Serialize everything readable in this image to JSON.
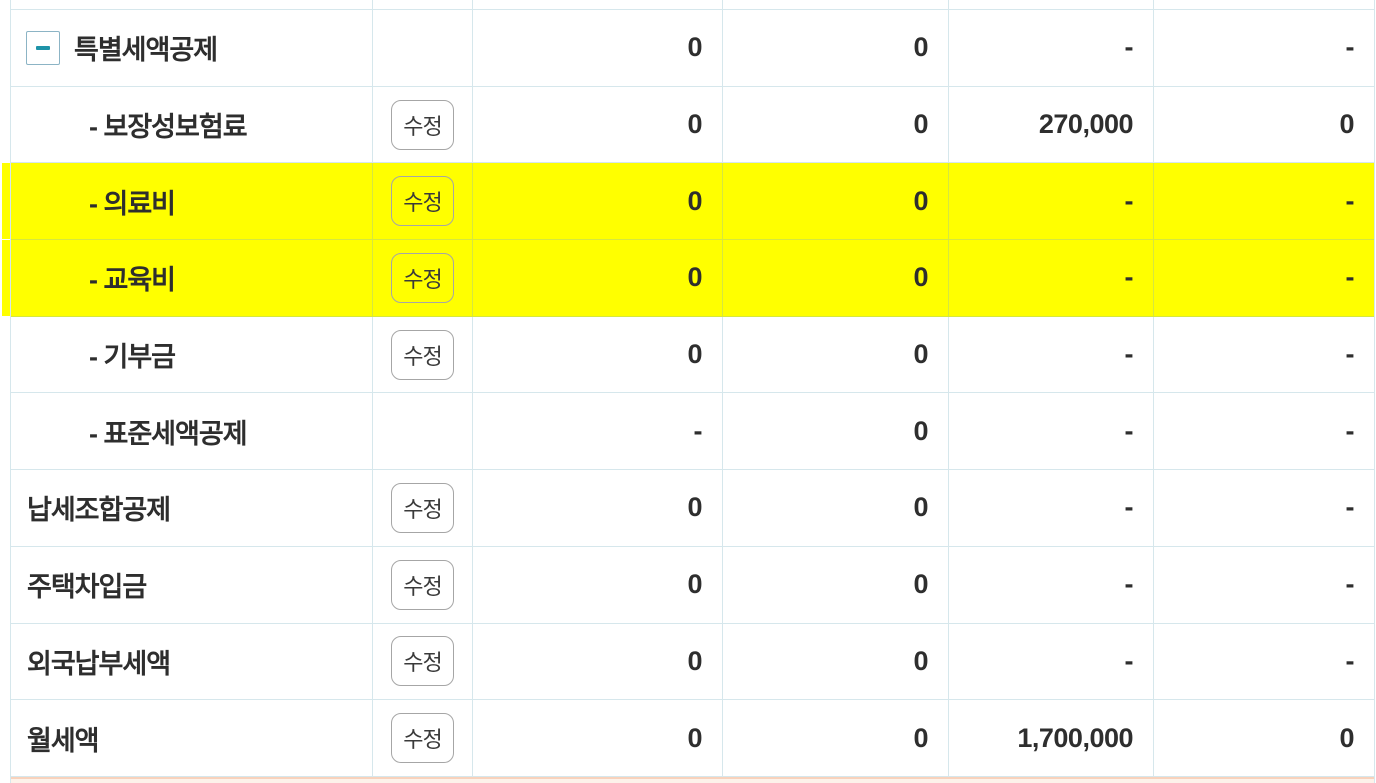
{
  "edit_button_label": "수정",
  "collapse_icon": "minus-icon",
  "colors": {
    "highlight_yellow": "#ffff00",
    "grid_line": "#d4e6ec",
    "collapse_minus_teal": "#1e93a8",
    "section_strip_bg": "#fdf2ea",
    "section_strip_border": "#f8d2bc",
    "text": "#2e2e2e"
  },
  "table": {
    "rows": [
      {
        "kind": "spacer",
        "label": "",
        "has_collapse": false,
        "has_edit": false,
        "highlight": false,
        "values": [
          "",
          "",
          "",
          ""
        ]
      },
      {
        "kind": "parent",
        "label": "특별세액공제",
        "has_collapse": true,
        "has_edit": false,
        "highlight": false,
        "values": [
          "0",
          "0",
          "-",
          "-"
        ]
      },
      {
        "kind": "child",
        "label": "- 보장성보험료",
        "has_collapse": false,
        "has_edit": true,
        "highlight": false,
        "values": [
          "0",
          "0",
          "270,000",
          "0"
        ]
      },
      {
        "kind": "child",
        "label": "- 의료비",
        "has_collapse": false,
        "has_edit": true,
        "highlight": true,
        "values": [
          "0",
          "0",
          "-",
          "-"
        ]
      },
      {
        "kind": "child",
        "label": "- 교육비",
        "has_collapse": false,
        "has_edit": true,
        "highlight": true,
        "values": [
          "0",
          "0",
          "-",
          "-"
        ]
      },
      {
        "kind": "child",
        "label": "- 기부금",
        "has_collapse": false,
        "has_edit": true,
        "highlight": false,
        "values": [
          "0",
          "0",
          "-",
          "-"
        ]
      },
      {
        "kind": "child",
        "label": "- 표준세액공제",
        "has_collapse": false,
        "has_edit": false,
        "highlight": false,
        "values": [
          "-",
          "0",
          "-",
          "-"
        ]
      },
      {
        "kind": "top",
        "label": "납세조합공제",
        "has_collapse": false,
        "has_edit": true,
        "highlight": false,
        "values": [
          "0",
          "0",
          "-",
          "-"
        ]
      },
      {
        "kind": "top",
        "label": "주택차입금",
        "has_collapse": false,
        "has_edit": true,
        "highlight": false,
        "values": [
          "0",
          "0",
          "-",
          "-"
        ]
      },
      {
        "kind": "top",
        "label": "외국납부세액",
        "has_collapse": false,
        "has_edit": true,
        "highlight": false,
        "values": [
          "0",
          "0",
          "-",
          "-"
        ]
      },
      {
        "kind": "top",
        "label": "월세액",
        "has_collapse": false,
        "has_edit": true,
        "highlight": false,
        "values": [
          "0",
          "0",
          "1,700,000",
          "0"
        ]
      }
    ]
  }
}
